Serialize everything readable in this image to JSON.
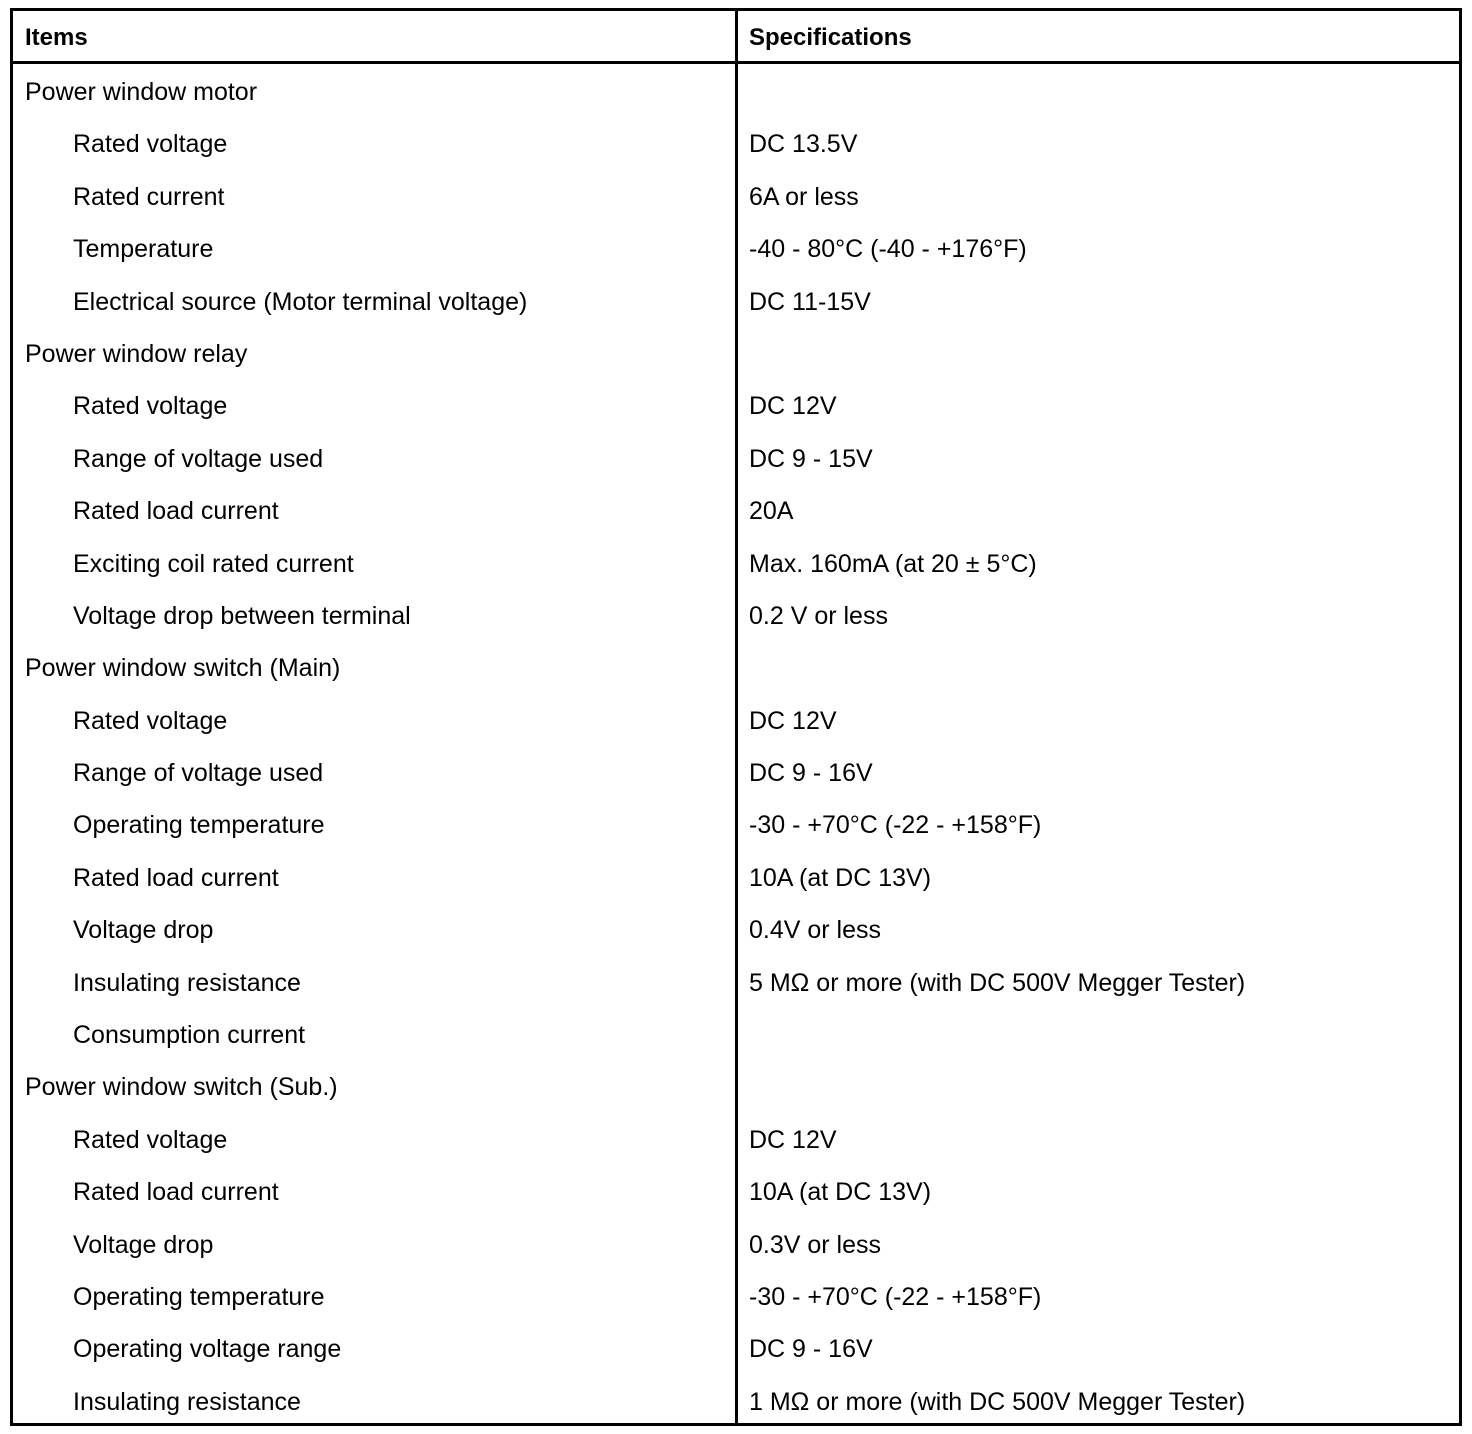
{
  "header": {
    "items": "Items",
    "specifications": "Specifications"
  },
  "rows": [
    {
      "item": "Power window motor",
      "spec": "",
      "group": true
    },
    {
      "item": "Rated voltage",
      "spec": "DC 13.5V"
    },
    {
      "item": "Rated current",
      "spec": "6A or less"
    },
    {
      "item": "Temperature",
      "spec": "-40 - 80°C (-40 - +176°F)"
    },
    {
      "item": "Electrical source (Motor terminal voltage)",
      "spec": "DC 11-15V"
    },
    {
      "item": "Power window relay",
      "spec": "",
      "group": true
    },
    {
      "item": "Rated voltage",
      "spec": "DC 12V"
    },
    {
      "item": "Range of voltage used",
      "spec": "DC 9 - 15V"
    },
    {
      "item": "Rated load current",
      "spec": "20A"
    },
    {
      "item": "Exciting coil rated current",
      "spec": "Max. 160mA (at 20 ± 5°C)"
    },
    {
      "item": "Voltage drop between terminal",
      "spec": "0.2 V or less"
    },
    {
      "item": "Power window switch (Main)",
      "spec": "",
      "group": true
    },
    {
      "item": "Rated voltage",
      "spec": "DC 12V"
    },
    {
      "item": "Range of voltage used",
      "spec": "DC 9 - 16V"
    },
    {
      "item": "Operating temperature",
      "spec": "-30 - +70°C (-22 - +158°F)"
    },
    {
      "item": "Rated load current",
      "spec": "10A (at DC 13V)"
    },
    {
      "item": "Voltage drop",
      "spec": "0.4V or less"
    },
    {
      "item": "Insulating resistance",
      "spec": "5 MΩ or more (with DC 500V Megger Tester)"
    },
    {
      "item": "Consumption current",
      "spec": ""
    },
    {
      "item": "Power window switch (Sub.)",
      "spec": "",
      "group": true
    },
    {
      "item": "Rated voltage",
      "spec": "DC 12V"
    },
    {
      "item": "Rated load current",
      "spec": "10A (at DC 13V)"
    },
    {
      "item": "Voltage drop",
      "spec": "0.3V or less"
    },
    {
      "item": "Operating temperature",
      "spec": "-30 - +70°C (-22 - +158°F)"
    },
    {
      "item": "Operating voltage range",
      "spec": "DC 9 - 16V"
    },
    {
      "item": "Insulating resistance",
      "spec": "1 MΩ or more (with DC 500V Megger Tester)"
    }
  ]
}
